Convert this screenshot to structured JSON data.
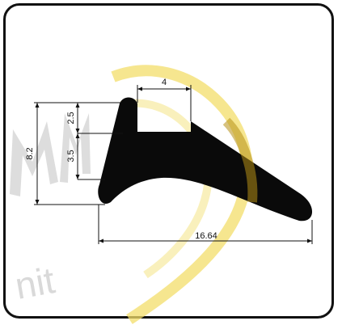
{
  "diagram": {
    "dimensions": {
      "top_width": "4",
      "total_height": "8.2",
      "upper_height": "2.5",
      "lower_height": "3.5",
      "total_length": "16.64"
    },
    "watermark": {
      "letters": "M",
      "word": "nit"
    },
    "colors": {
      "profile": "#0a0a0a",
      "dimension_lines": "#111111",
      "watermark_gray": "#d9d9d9",
      "watermark_yellow": "#f3dd6a"
    }
  }
}
